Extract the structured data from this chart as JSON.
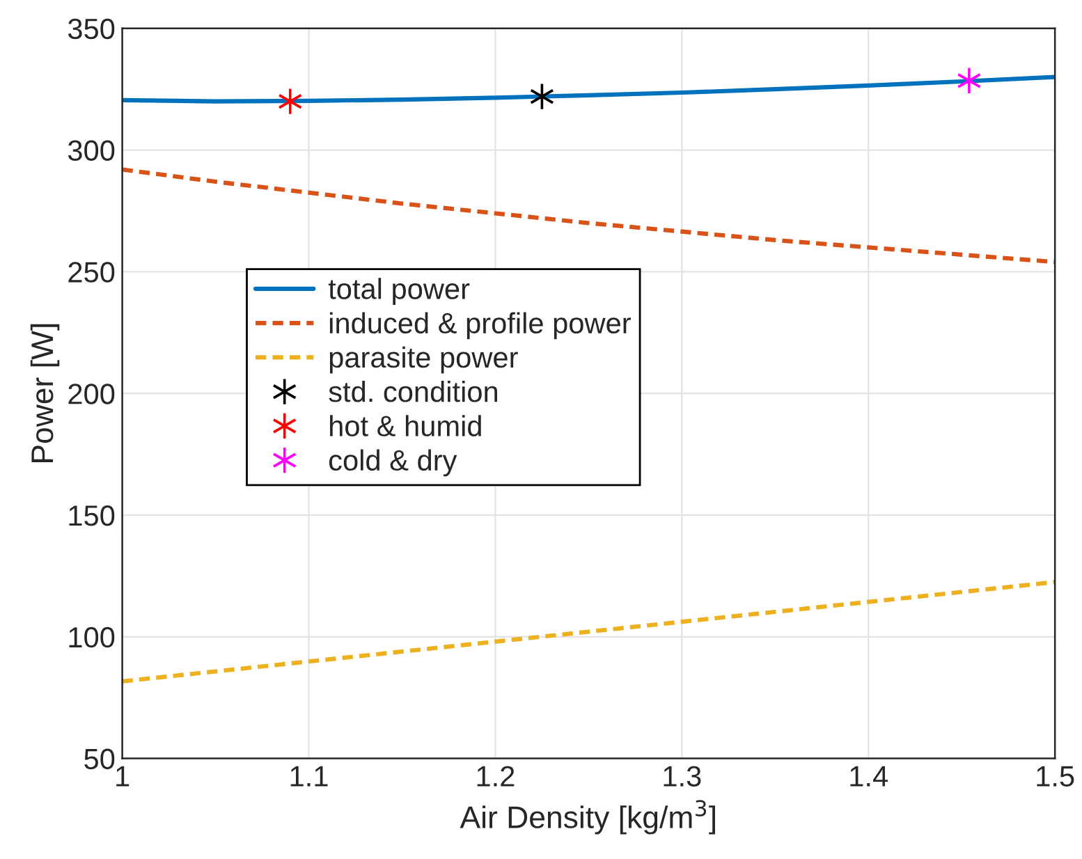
{
  "chart_data": {
    "type": "line",
    "xlabel": "Air Density [kg/m$^{3}$]",
    "ylabel": "Power [W]",
    "xlim": [
      1,
      1.5
    ],
    "xticks": [
      1,
      1.1,
      1.2,
      1.3,
      1.4,
      1.5
    ],
    "ylim": [
      50,
      350
    ],
    "yticks": [
      50,
      100,
      150,
      200,
      250,
      300,
      350
    ],
    "grid": true,
    "legend": "left",
    "series": [
      {
        "name": "total power",
        "color": "#0072bd",
        "line_style": "solid",
        "marker": "none",
        "x": [
          1,
          1.05,
          1.1,
          1.15,
          1.2,
          1.25,
          1.3,
          1.35,
          1.4,
          1.45,
          1.5
        ],
        "values": [
          320.5,
          320,
          320.2,
          320.7,
          321.5,
          322.5,
          323.6,
          325,
          326.5,
          328.2,
          330
        ]
      },
      {
        "name": "induced & profile power",
        "color": "#d95319",
        "line_style": "dashed",
        "marker": "none",
        "x": [
          1,
          1.05,
          1.1,
          1.15,
          1.2,
          1.25,
          1.3,
          1.35,
          1.4,
          1.45,
          1.5
        ],
        "values": [
          292,
          287,
          282.5,
          278,
          274,
          270,
          266.5,
          263,
          260,
          257,
          254
        ]
      },
      {
        "name": "parasite power",
        "color": "#edb120",
        "line_style": "dashed",
        "marker": "none",
        "x": [
          1,
          1.25,
          1.5
        ],
        "values": [
          81.7,
          102.1,
          122.5
        ]
      },
      {
        "name": "std. condition",
        "type": "scatter",
        "color": "#000000",
        "marker": "cross",
        "x": [
          1.225
        ],
        "values": [
          322
        ]
      },
      {
        "name": "hot & humid",
        "type": "scatter",
        "color": "#ff0000",
        "marker": "cross",
        "x": [
          1.09
        ],
        "values": [
          320
        ]
      },
      {
        "name": "cold & dry",
        "type": "scatter",
        "color": "#ff00ff",
        "marker": "cross",
        "x": [
          1.454
        ],
        "values": [
          328.5
        ]
      }
    ]
  }
}
